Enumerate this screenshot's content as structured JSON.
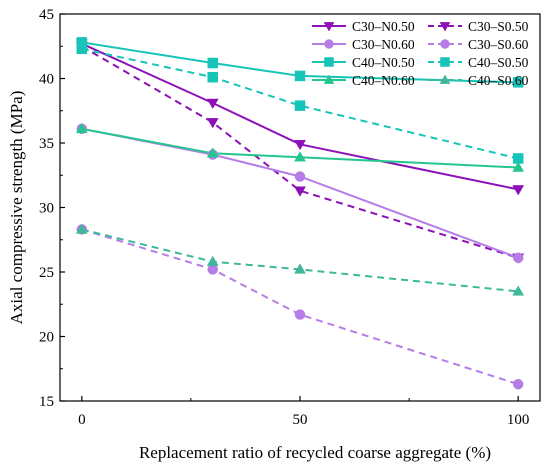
{
  "chart_data": {
    "type": "line",
    "title": "",
    "xlabel": "Replacement ratio of recycled coarse aggregate (%)",
    "ylabel": "Axial compressive strength (MPa)",
    "x": [
      0,
      30,
      50,
      100
    ],
    "xticks": [
      "0",
      "50",
      "100"
    ],
    "xlim": [
      -5,
      105
    ],
    "ylim": [
      15,
      45
    ],
    "yticks": [
      "15",
      "20",
      "25",
      "30",
      "35",
      "40",
      "45"
    ],
    "grid": false,
    "legend_position": "top-right",
    "series": [
      {
        "name": "C30–N0.50",
        "color": "#8e10b8",
        "marker": "triangle-down",
        "dashed": false,
        "values": [
          42.7,
          38.1,
          34.9,
          31.4
        ]
      },
      {
        "name": "C30–S0.50",
        "color": "#8e10b8",
        "marker": "triangle-down",
        "dashed": true,
        "values": [
          42.5,
          36.6,
          31.3,
          26.1
        ]
      },
      {
        "name": "C30–N0.60",
        "color": "#b67de6",
        "marker": "circle",
        "dashed": false,
        "values": [
          36.1,
          34.1,
          32.4,
          26.1
        ]
      },
      {
        "name": "C30–S0.60",
        "color": "#b67de6",
        "marker": "circle",
        "dashed": true,
        "values": [
          28.3,
          25.2,
          21.7,
          16.3
        ]
      },
      {
        "name": "C40–N0.50",
        "color": "#17c4b8",
        "marker": "square",
        "dashed": false,
        "values": [
          42.8,
          41.2,
          40.2,
          39.7
        ]
      },
      {
        "name": "C40–S0.50",
        "color": "#17c4b8",
        "marker": "square",
        "dashed": true,
        "values": [
          42.3,
          40.1,
          37.9,
          33.8
        ]
      },
      {
        "name": "C40–N0.60",
        "color": "#23c68f",
        "marker": "triangle-up",
        "dashed": false,
        "values": [
          36.1,
          34.2,
          33.9,
          33.1
        ]
      },
      {
        "name": "C40–S0.60",
        "color": "#3db89a",
        "marker": "triangle-up",
        "dashed": true,
        "values": [
          28.3,
          25.8,
          25.2,
          23.5
        ]
      }
    ]
  }
}
